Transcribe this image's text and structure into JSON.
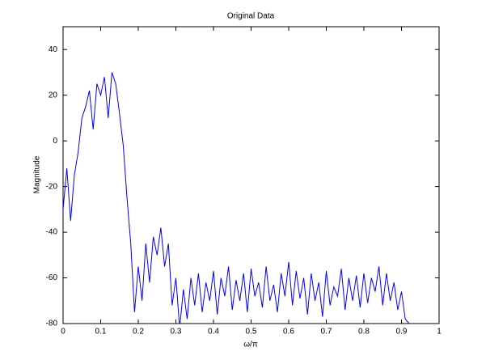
{
  "chart_data": {
    "type": "line",
    "title": "Original Data",
    "xlabel": "ω/π",
    "ylabel": "Magnitude",
    "x": [
      0,
      0.01,
      0.02,
      0.03,
      0.04,
      0.05,
      0.06,
      0.07,
      0.08,
      0.09,
      0.1,
      0.11,
      0.12,
      0.13,
      0.14,
      0.15,
      0.16,
      0.17,
      0.18,
      0.19,
      0.2,
      0.21,
      0.22,
      0.23,
      0.24,
      0.25,
      0.26,
      0.27,
      0.28,
      0.29,
      0.3,
      0.31,
      0.32,
      0.33,
      0.34,
      0.35,
      0.36,
      0.37,
      0.38,
      0.39,
      0.4,
      0.41,
      0.42,
      0.43,
      0.44,
      0.45,
      0.46,
      0.47,
      0.48,
      0.49,
      0.5,
      0.51,
      0.52,
      0.53,
      0.54,
      0.55,
      0.56,
      0.57,
      0.58,
      0.59,
      0.6,
      0.61,
      0.62,
      0.63,
      0.64,
      0.65,
      0.66,
      0.67,
      0.68,
      0.69,
      0.7,
      0.71,
      0.72,
      0.73,
      0.74,
      0.75,
      0.76,
      0.77,
      0.78,
      0.79,
      0.8,
      0.81,
      0.82,
      0.83,
      0.84,
      0.85,
      0.86,
      0.87,
      0.88,
      0.89,
      0.9,
      0.91,
      0.92
    ],
    "values": [
      -30,
      -12,
      -35,
      -15,
      -5,
      10,
      15,
      22,
      5,
      25,
      20,
      28,
      10,
      30,
      25,
      12,
      -2,
      -25,
      -45,
      -75,
      -55,
      -70,
      -45,
      -62,
      -42,
      -50,
      -38,
      -55,
      -45,
      -72,
      -60,
      -82,
      -65,
      -78,
      -60,
      -72,
      -58,
      -75,
      -62,
      -70,
      -57,
      -76,
      -60,
      -68,
      -55,
      -74,
      -61,
      -70,
      -58,
      -75,
      -56,
      -68,
      -62,
      -73,
      -55,
      -70,
      -63,
      -75,
      -58,
      -68,
      -53,
      -72,
      -57,
      -69,
      -60,
      -76,
      -58,
      -70,
      -62,
      -77,
      -57,
      -72,
      -64,
      -68,
      -56,
      -74,
      -60,
      -70,
      -59,
      -73,
      -58,
      -71,
      -60,
      -66,
      -55,
      -72,
      -58,
      -70,
      -62,
      -74,
      -66,
      -78,
      -80
    ],
    "color": "#0000ff",
    "xlim": [
      0,
      1
    ],
    "ylim": [
      -80,
      50
    ],
    "xticks": [
      0,
      0.1,
      0.2,
      0.3,
      0.4,
      0.5,
      0.6,
      0.7,
      0.8,
      0.9,
      1
    ],
    "yticks": [
      -80,
      -60,
      -40,
      -20,
      0,
      20,
      40
    ],
    "grid": false
  }
}
